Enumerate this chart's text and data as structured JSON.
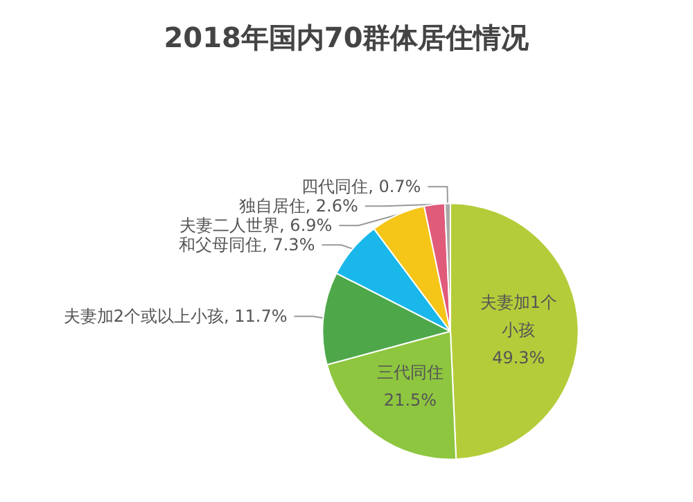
{
  "chart_data": {
    "type": "pie",
    "title": "2018年国内70群体居住情况",
    "categories": [
      "夫妻加1个小孩",
      "三代同住",
      "夫妻加2个或以上小孩",
      "和父母同住",
      "夫妻二人世界",
      "独自居住",
      "四代同住"
    ],
    "values": [
      49.3,
      21.5,
      11.7,
      7.3,
      6.9,
      2.6,
      0.7
    ],
    "value_labels": [
      "49.3%",
      "21.5%",
      "11.7%",
      "7.3%",
      "6.9%",
      "2.6%",
      "0.7%"
    ],
    "colors": [
      "#b5cc3a",
      "#8ec63f",
      "#4ea84a",
      "#1ab7ea",
      "#f5c518",
      "#e05a7a",
      "#aaaaaa"
    ],
    "legend": false
  }
}
